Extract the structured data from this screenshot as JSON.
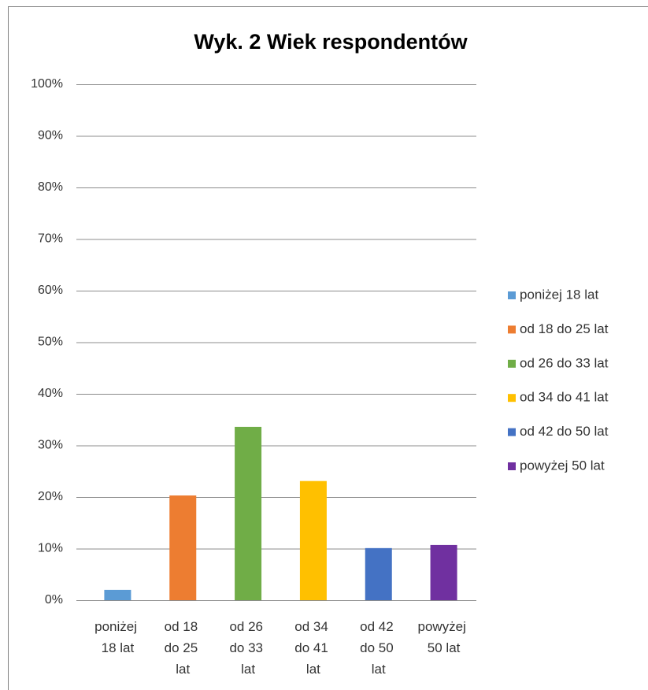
{
  "chart_data": {
    "type": "bar",
    "title": "Wyk. 2 Wiek respondentów",
    "categories": [
      "poniżej 18 lat",
      "od 18 do 25 lat",
      "od 26 do 33 lat",
      "od 34 do 41 lat",
      "od 42 do 50 lat",
      "powyżej 50 lat"
    ],
    "values": [
      2.0,
      20.3,
      33.6,
      23.1,
      10.1,
      10.7
    ],
    "colors": [
      "#5b9bd5",
      "#ed7d31",
      "#70ad47",
      "#ffc000",
      "#4472c4",
      "#7030a0"
    ],
    "ylim": [
      0,
      100
    ],
    "yticks": [
      {
        "value": 0,
        "label": "0%"
      },
      {
        "value": 10,
        "label": "10%"
      },
      {
        "value": 20,
        "label": "20%"
      },
      {
        "value": 30,
        "label": "30%"
      },
      {
        "value": 40,
        "label": "40%"
      },
      {
        "value": 50,
        "label": "50%"
      },
      {
        "value": 60,
        "label": "60%"
      },
      {
        "value": 70,
        "label": "70%"
      },
      {
        "value": 80,
        "label": "80%"
      },
      {
        "value": 90,
        "label": "90%"
      },
      {
        "value": 100,
        "label": "100%"
      }
    ],
    "grid": true,
    "legend": "right"
  }
}
